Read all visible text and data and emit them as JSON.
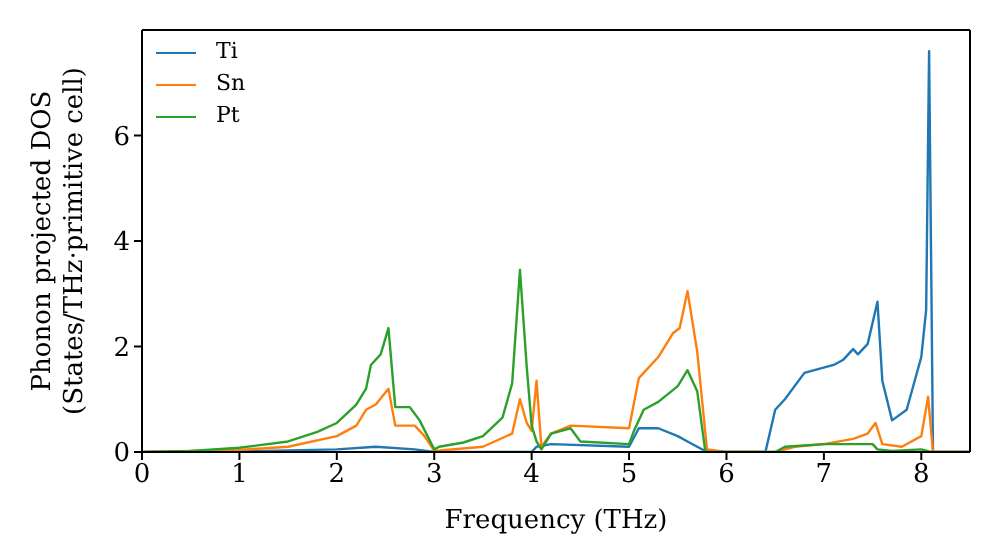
{
  "chart_data": {
    "type": "line",
    "xlabel": "Frequency (THz)",
    "ylabel": "Phonon projected DOS\n(States/THz·primitive cell)",
    "xlim": [
      0,
      8.5
    ],
    "xticks": [
      0,
      1,
      2,
      3,
      4,
      5,
      6,
      7,
      8
    ],
    "ylim": [
      0,
      8
    ],
    "yticks": [
      0,
      2,
      4,
      6
    ],
    "grid": false,
    "legend": "top left",
    "marker": "none",
    "line_style": "solid",
    "series": [
      {
        "name": "Ti",
        "color": "#1f77b4",
        "x": [
          0,
          1,
          2,
          2.4,
          2.8,
          3,
          4,
          4.05,
          4.2,
          5,
          5.1,
          5.3,
          5.5,
          5.6,
          5.8,
          6.4,
          6.5,
          6.6,
          6.8,
          7.1,
          7.2,
          7.3,
          7.35,
          7.45,
          7.55,
          7.6,
          7.7,
          7.85,
          8,
          8.05,
          8.08,
          8.12,
          8.5
        ],
        "values": [
          0,
          0.01,
          0.05,
          0.1,
          0.05,
          0,
          0,
          0.1,
          0.15,
          0.1,
          0.45,
          0.45,
          0.3,
          0.2,
          0,
          0,
          0.8,
          1,
          1.5,
          1.65,
          1.75,
          1.95,
          1.85,
          2.05,
          2.85,
          1.35,
          0.6,
          0.8,
          1.8,
          2.7,
          7.6,
          0,
          0
        ]
      },
      {
        "name": "Sn",
        "color": "#ff7f0e",
        "x": [
          0,
          1,
          1.5,
          2,
          2.2,
          2.3,
          2.4,
          2.53,
          2.6,
          2.8,
          2.9,
          3,
          3.5,
          3.8,
          3.88,
          3.95,
          4,
          4.05,
          4.1,
          4.2,
          4.4,
          5,
          5.1,
          5.3,
          5.45,
          5.52,
          5.6,
          5.7,
          5.8,
          6,
          6.5,
          6.7,
          7,
          7.3,
          7.45,
          7.53,
          7.6,
          7.8,
          8,
          8.07,
          8.12,
          8.5
        ],
        "values": [
          0,
          0.04,
          0.1,
          0.3,
          0.5,
          0.8,
          0.9,
          1.2,
          0.5,
          0.5,
          0.3,
          0.02,
          0.1,
          0.35,
          1,
          0.55,
          0.4,
          1.35,
          0.1,
          0.35,
          0.5,
          0.45,
          1.4,
          1.8,
          2.25,
          2.35,
          3.05,
          1.9,
          0.05,
          0,
          0,
          0.1,
          0.15,
          0.25,
          0.35,
          0.55,
          0.15,
          0.1,
          0.3,
          1.05,
          0,
          0
        ]
      },
      {
        "name": "Pt",
        "color": "#2ca02c",
        "x": [
          0,
          0.5,
          1,
          1.5,
          1.8,
          2,
          2.2,
          2.3,
          2.35,
          2.45,
          2.53,
          2.6,
          2.75,
          2.85,
          3,
          3.05,
          3.3,
          3.5,
          3.7,
          3.8,
          3.88,
          3.95,
          4,
          4.05,
          4.1,
          4.2,
          4.4,
          4.5,
          5,
          5.05,
          5.15,
          5.3,
          5.5,
          5.6,
          5.7,
          5.78,
          5.8,
          6.5,
          6.6,
          7,
          7.5,
          7.55,
          7.7,
          8,
          8.1,
          8.5
        ],
        "values": [
          0,
          0.02,
          0.08,
          0.2,
          0.38,
          0.55,
          0.9,
          1.2,
          1.65,
          1.85,
          2.35,
          0.85,
          0.85,
          0.6,
          0.05,
          0.1,
          0.18,
          0.3,
          0.65,
          1.3,
          3.45,
          1.6,
          0.5,
          0.2,
          0.05,
          0.35,
          0.45,
          0.2,
          0.15,
          0.4,
          0.8,
          0.95,
          1.25,
          1.55,
          1.15,
          0.05,
          0,
          0,
          0.1,
          0.15,
          0.15,
          0.05,
          0.02,
          0.05,
          0,
          0
        ]
      }
    ]
  }
}
